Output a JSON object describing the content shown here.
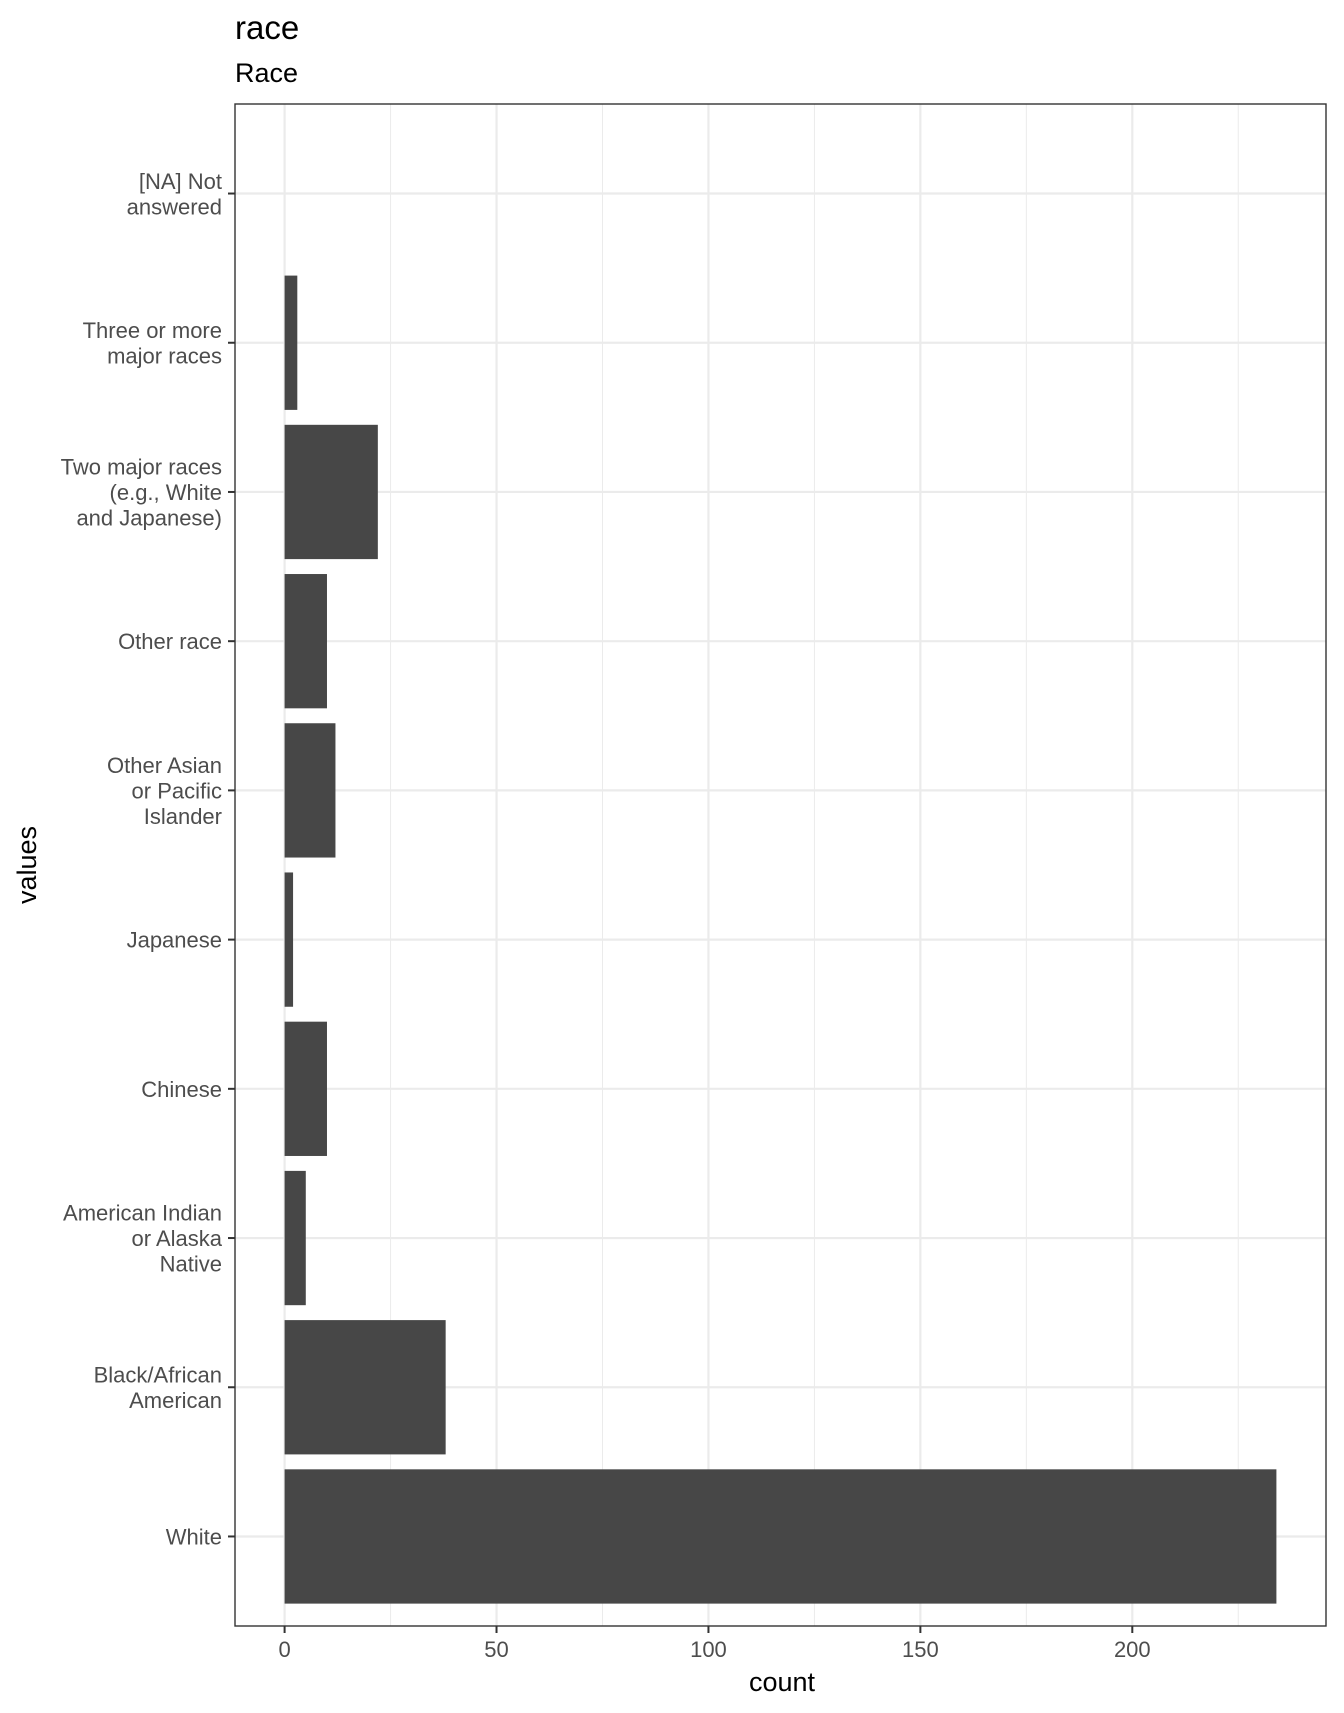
{
  "chart_data": {
    "type": "bar",
    "orientation": "horizontal",
    "title": "race",
    "subtitle": "Race",
    "xlabel": "count",
    "ylabel": "values",
    "xlim": [
      -11.7,
      245.7
    ],
    "xticks": [
      0,
      50,
      100,
      150,
      200
    ],
    "grid": true,
    "legend": "none",
    "categories": [
      "White",
      "Black/African American",
      "American Indian or Alaska Native",
      "Chinese",
      "Japanese",
      "Other Asian or Pacific Islander",
      "Other race",
      "Two major races (e.g., White and Japanese)",
      "Three or more major races",
      "[NA] Not answered"
    ],
    "category_label_lines": [
      [
        "White"
      ],
      [
        "Black/African",
        "American"
      ],
      [
        "American Indian",
        "or Alaska",
        "Native"
      ],
      [
        "Chinese"
      ],
      [
        "Japanese"
      ],
      [
        "Other Asian",
        "or Pacific",
        "Islander"
      ],
      [
        "Other race"
      ],
      [
        "Two major races",
        "(e.g., White",
        "and Japanese)"
      ],
      [
        "Three or more",
        "major races"
      ],
      [
        "[NA] Not",
        "answered"
      ]
    ],
    "values": [
      234,
      38,
      5,
      10,
      2,
      12,
      10,
      22,
      3,
      0
    ],
    "bar_color": "#474747",
    "grid_color": "#ebebeb",
    "panel_border_color": "#333333"
  }
}
